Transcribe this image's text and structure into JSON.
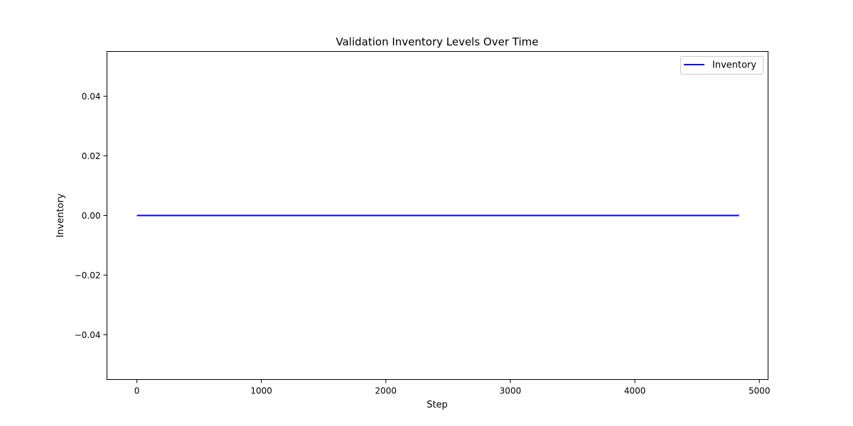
{
  "chart_data": {
    "type": "line",
    "title": "Validation Inventory Levels Over Time",
    "xlabel": "Step",
    "ylabel": "Inventory",
    "xlim": [
      -240,
      5070
    ],
    "ylim": [
      -0.055,
      0.055
    ],
    "x_ticks": [
      0,
      1000,
      2000,
      3000,
      4000,
      5000
    ],
    "x_tick_labels": [
      "0",
      "1000",
      "2000",
      "3000",
      "4000",
      "5000"
    ],
    "y_ticks": [
      -0.04,
      -0.02,
      0.0,
      0.02,
      0.04
    ],
    "y_tick_labels": [
      "−0.04",
      "−0.02",
      "0.00",
      "0.02",
      "0.04"
    ],
    "grid": false,
    "legend_position": "top-right",
    "series": [
      {
        "name": "Inventory",
        "color": "#0000ff",
        "x": [
          0,
          4838
        ],
        "y": [
          0,
          0
        ]
      }
    ]
  }
}
